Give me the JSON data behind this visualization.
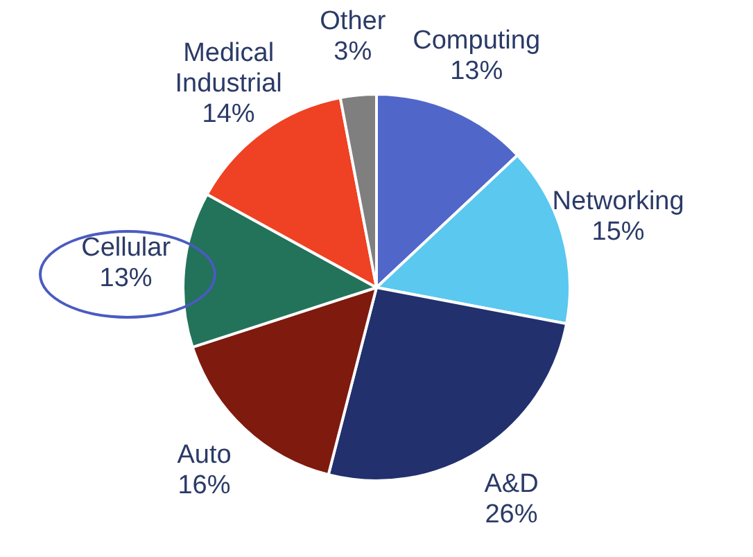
{
  "chart_data": {
    "type": "pie",
    "categories": [
      "Computing",
      "Networking",
      "A&D",
      "Auto",
      "Cellular",
      "Medical Industrial",
      "Other"
    ],
    "values": [
      13,
      15,
      26,
      16,
      13,
      14,
      3
    ],
    "colors": [
      "#5066c9",
      "#5bc8f0",
      "#22306e",
      "#7f1a0e",
      "#22735a",
      "#ef4123",
      "#7f7f7f"
    ],
    "value_labels": [
      "13%",
      "15%",
      "26%",
      "16%",
      "13%",
      "14%",
      "3%"
    ],
    "legend": false
  }
}
